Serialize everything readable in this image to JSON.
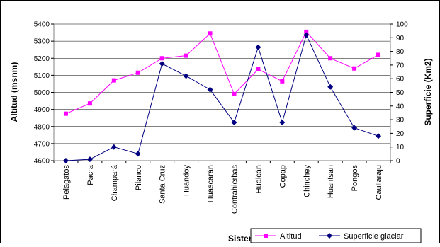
{
  "chart_data": {
    "type": "line",
    "title": "",
    "xlabel": "Sistemas",
    "ylabel": "Altitud (msnm)",
    "y2label": "Superficie (Km2)",
    "categories": [
      "Pelagatos",
      "Pacra",
      "Champará",
      "Pilanco",
      "Santa Cruz",
      "Huandoy",
      "Huascarán",
      "Contrahierbas",
      "Hualcán",
      "Copap",
      "Chinchey",
      "Huantsan",
      "Pongos",
      "Caullaraju"
    ],
    "series": [
      {
        "name": "Altitud",
        "axis": "left",
        "color": "#ff00ff",
        "marker": "square",
        "values": [
          4875,
          4935,
          5070,
          5115,
          5200,
          5215,
          5345,
          4990,
          5135,
          5065,
          5355,
          5200,
          5140,
          5220
        ]
      },
      {
        "name": "Superficie glaciar",
        "axis": "right",
        "color": "#000080",
        "marker": "diamond",
        "values": [
          0,
          1,
          10,
          5,
          71,
          62,
          52,
          28,
          83,
          28,
          92,
          54,
          24,
          18
        ]
      }
    ],
    "ylim": [
      4600,
      5400
    ],
    "yticks": [
      4600,
      4700,
      4800,
      4900,
      5000,
      5100,
      5200,
      5300,
      5400
    ],
    "y2lim": [
      0,
      100
    ],
    "y2ticks": [
      0,
      10,
      20,
      30,
      40,
      50,
      60,
      70,
      80,
      90,
      100
    ],
    "grid": true,
    "legend_position": "bottom-right"
  }
}
